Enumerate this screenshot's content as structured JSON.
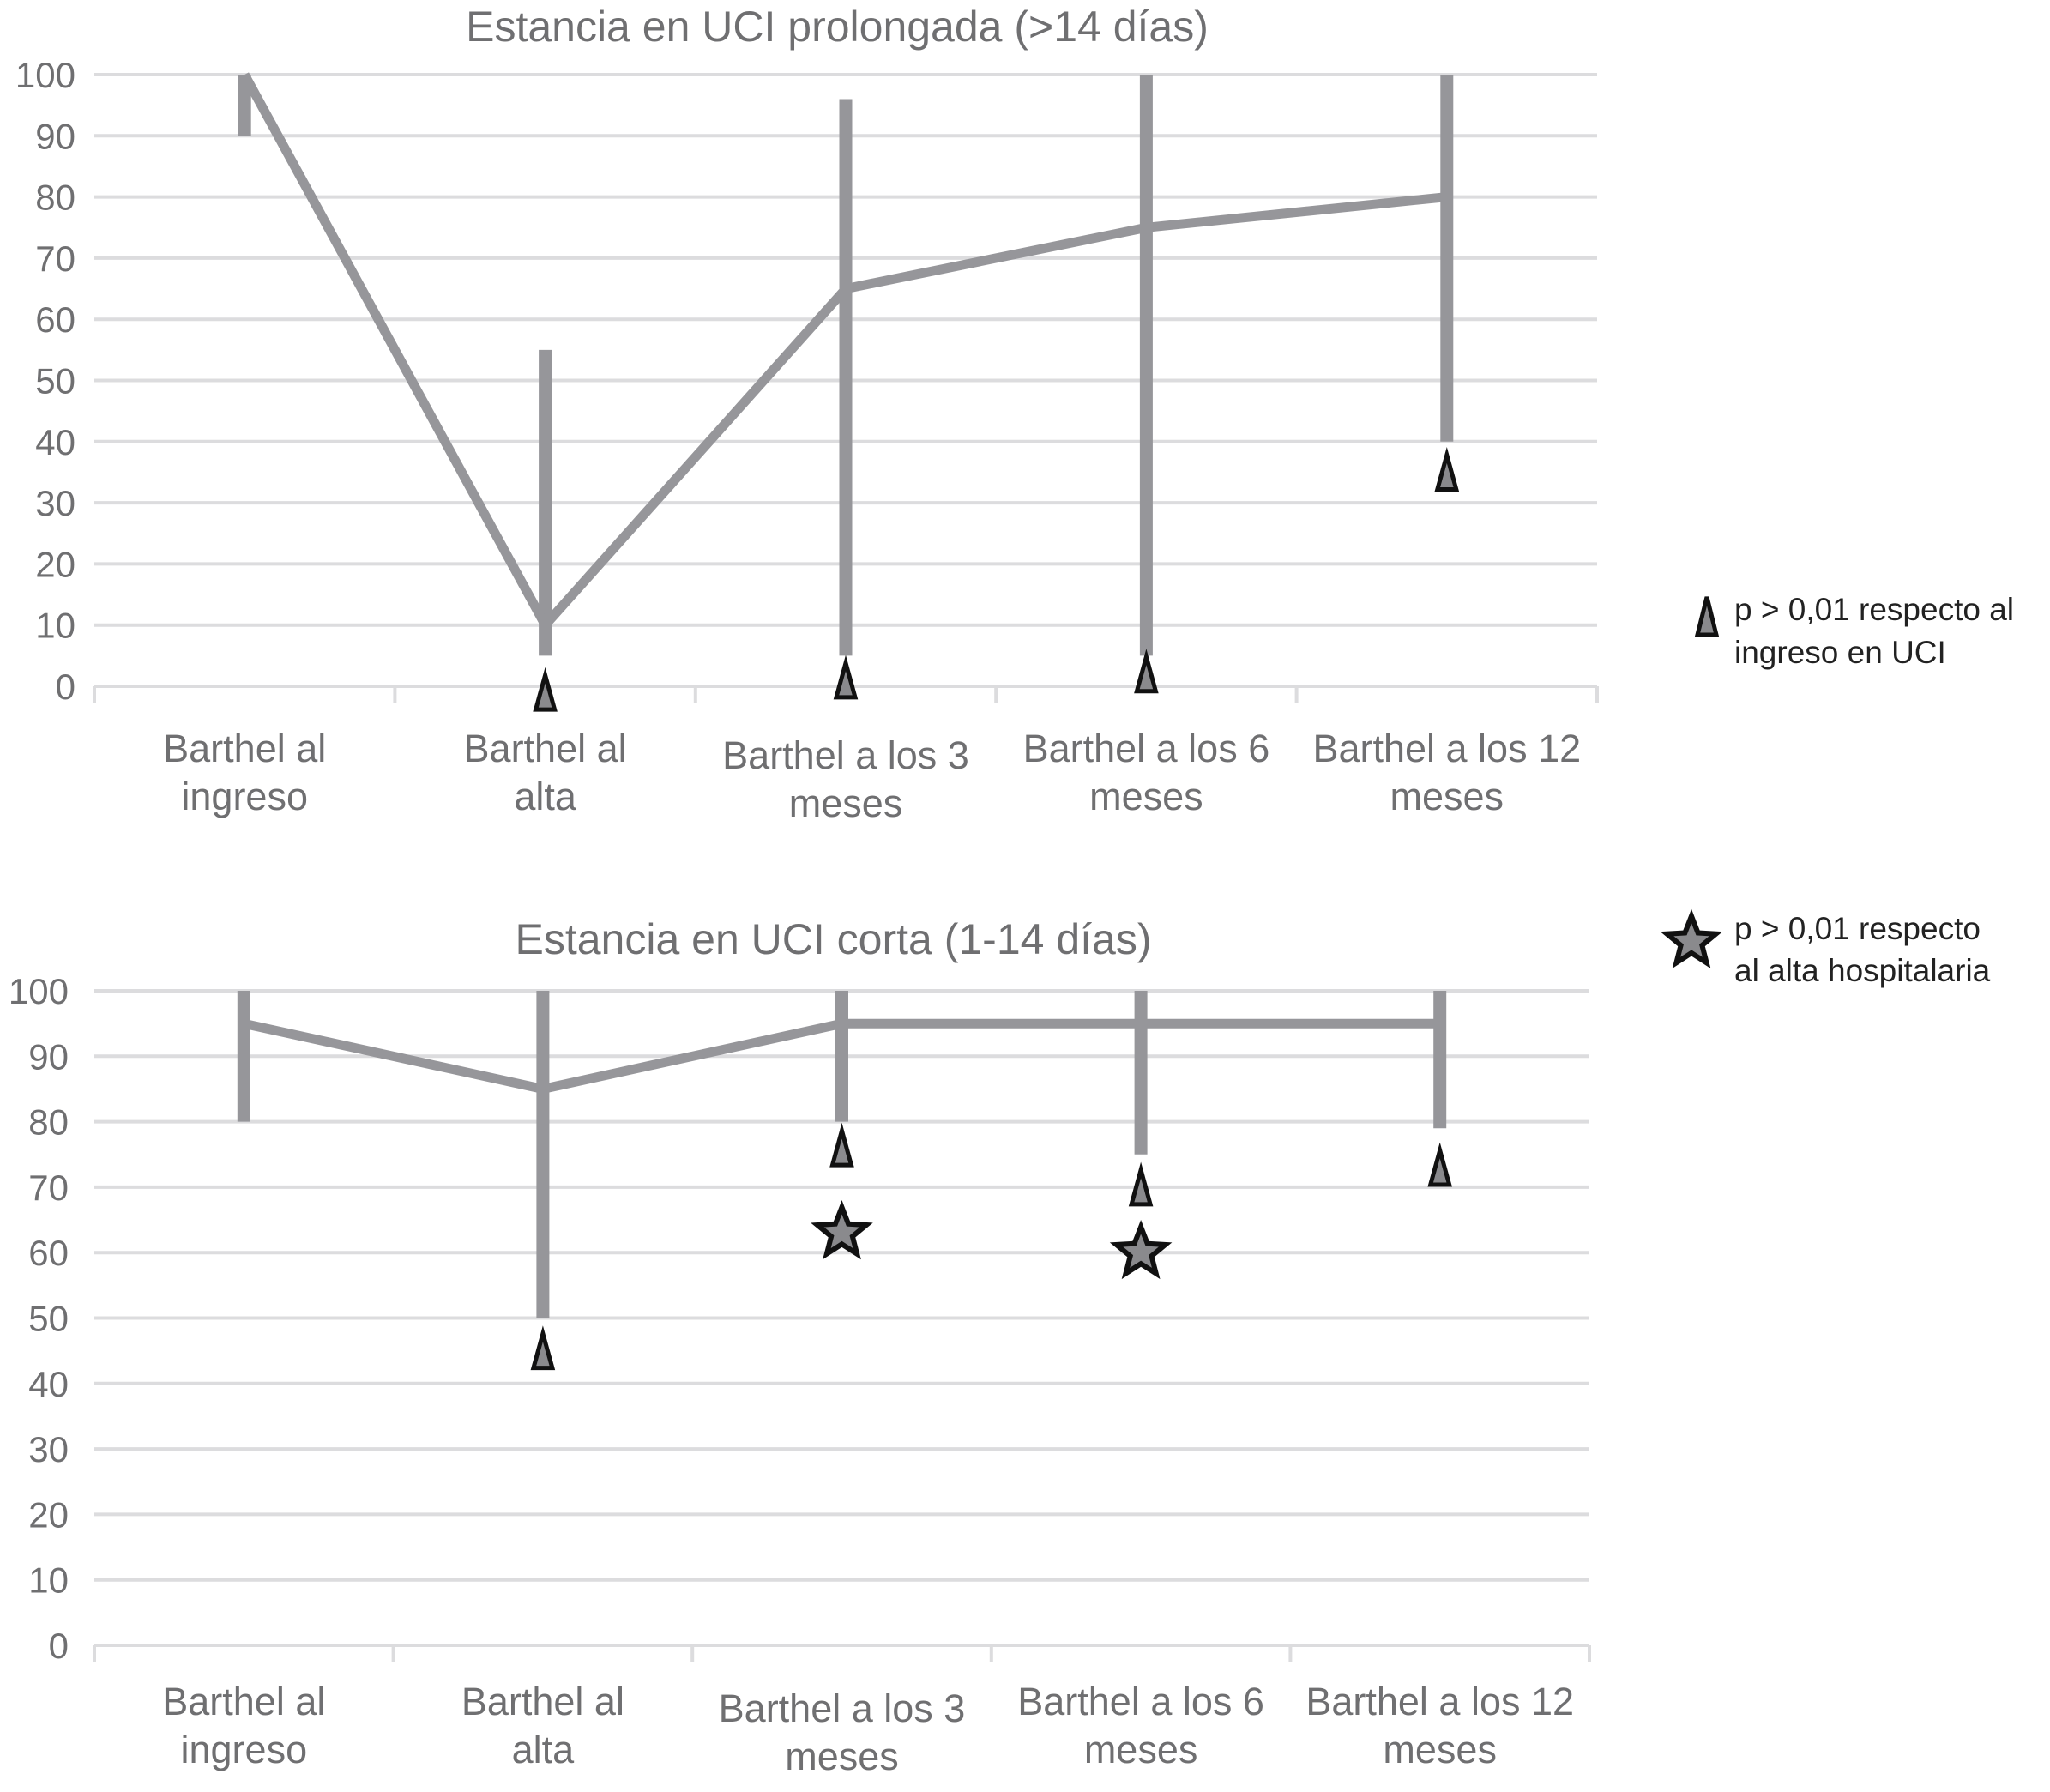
{
  "chart_data": [
    {
      "type": "line",
      "title": "Estancia en UCI prolongada (>14 días)",
      "xlabel": "",
      "ylabel": "",
      "ylim": [
        0,
        100
      ],
      "yticks": [
        "0",
        "10",
        "20",
        "30",
        "40",
        "50",
        "60",
        "70",
        "80",
        "90",
        "100"
      ],
      "categories": [
        [
          "Barthel al",
          "ingreso"
        ],
        [
          "Barthel al",
          "alta"
        ],
        [
          "Barthel a los 3",
          "meses"
        ],
        [
          "Barthel a los 6",
          "meses"
        ],
        [
          "Barthel a los 12",
          "meses"
        ]
      ],
      "series": [
        {
          "values": [
            100,
            10,
            65,
            75,
            80
          ]
        }
      ],
      "ranges": [
        [
          90,
          100
        ],
        [
          5,
          55
        ],
        [
          5,
          96
        ],
        [
          5,
          100
        ],
        [
          40,
          100
        ]
      ],
      "markers": [
        {
          "category": 1,
          "type": "triangle",
          "y": -1
        },
        {
          "category": 2,
          "type": "triangle",
          "y": 1
        },
        {
          "category": 3,
          "type": "triangle",
          "y": 2
        },
        {
          "category": 4,
          "type": "triangle",
          "y": 35
        }
      ],
      "grid": true,
      "colors": {
        "line": "#96969a",
        "grid": "#dcdcde",
        "marker_fill": "#8a8a8d",
        "marker_stroke": "#111111"
      }
    },
    {
      "type": "line",
      "title": "Estancia en UCI corta (1-14 días)",
      "xlabel": "",
      "ylabel": "",
      "ylim": [
        0,
        100
      ],
      "yticks": [
        "0",
        "10",
        "20",
        "30",
        "40",
        "50",
        "60",
        "70",
        "80",
        "90",
        "100"
      ],
      "categories": [
        [
          "Barthel al",
          "ingreso"
        ],
        [
          "Barthel al",
          "alta"
        ],
        [
          "Barthel a los 3",
          "meses"
        ],
        [
          "Barthel a los 6",
          "meses"
        ],
        [
          "Barthel a los 12",
          "meses"
        ]
      ],
      "series": [
        {
          "values": [
            95,
            85,
            95,
            95,
            95
          ]
        }
      ],
      "ranges": [
        [
          80,
          100
        ],
        [
          50,
          100
        ],
        [
          80,
          100
        ],
        [
          75,
          100
        ],
        [
          79,
          100
        ]
      ],
      "markers": [
        {
          "category": 1,
          "type": "triangle",
          "y": 45
        },
        {
          "category": 2,
          "type": "triangle",
          "y": 76
        },
        {
          "category": 2,
          "type": "star",
          "y": 63
        },
        {
          "category": 3,
          "type": "triangle",
          "y": 70
        },
        {
          "category": 3,
          "type": "star",
          "y": 60
        },
        {
          "category": 4,
          "type": "triangle",
          "y": 73
        }
      ],
      "grid": true,
      "colors": {
        "line": "#96969a",
        "grid": "#dcdcde",
        "marker_fill": "#8a8a8d",
        "marker_stroke": "#111111"
      }
    }
  ],
  "legend": {
    "placement": "right",
    "items": [
      {
        "icon": "triangle-icon",
        "lines": [
          "p > 0,01 respecto al",
          "ingreso en UCI"
        ]
      },
      {
        "icon": "star-icon",
        "lines": [
          "p > 0,01 respecto",
          "al alta hospitalaria"
        ]
      }
    ]
  }
}
